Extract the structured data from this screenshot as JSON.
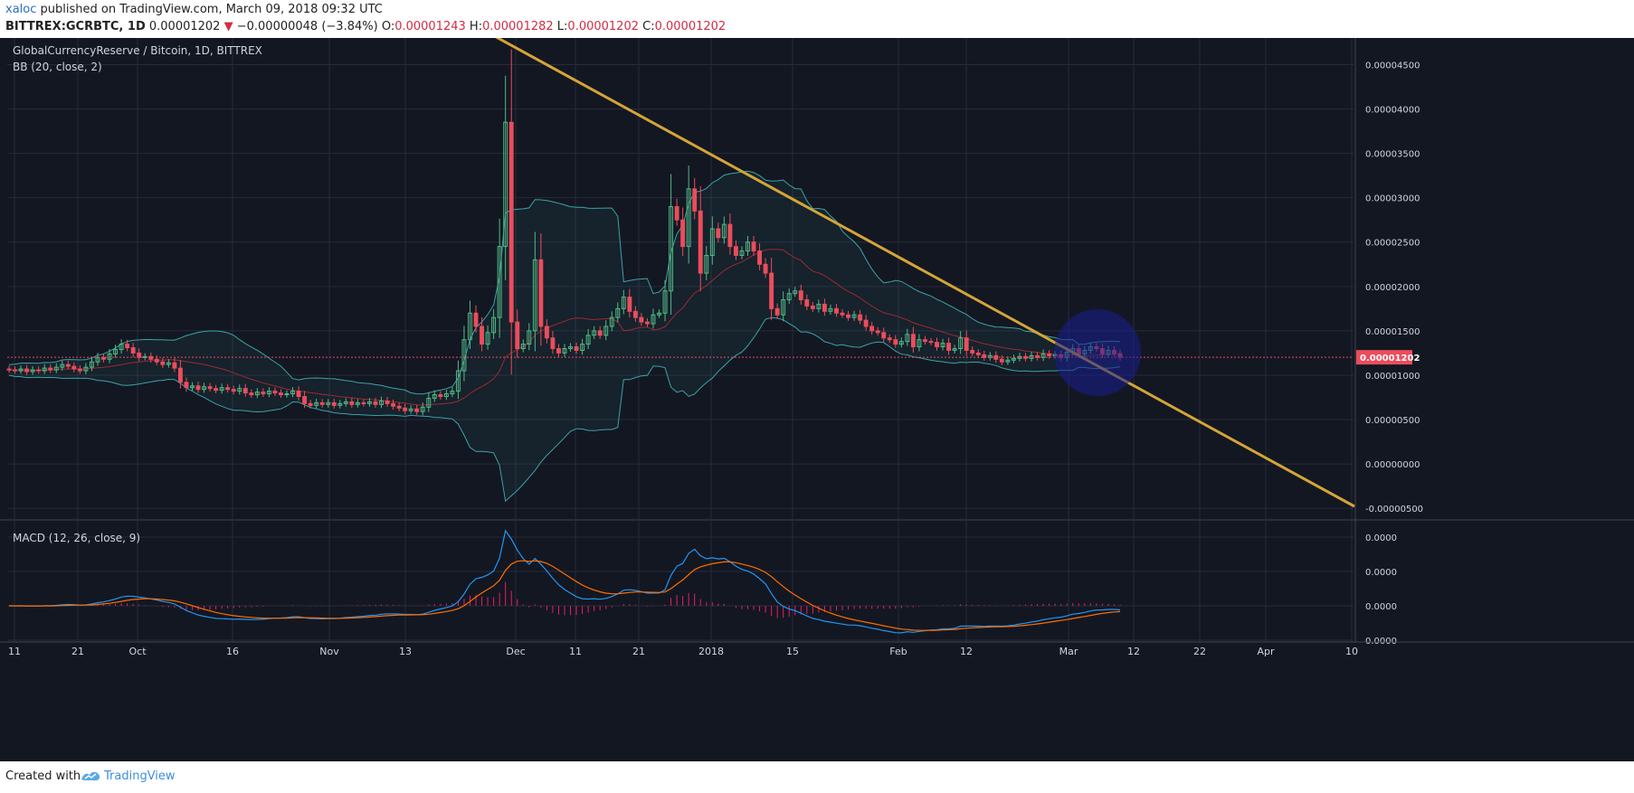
{
  "header": {
    "author": "xaloc",
    "published_text": "published on TradingView.com, March 09, 2018 09:32 UTC",
    "symbol": "BITTREX:GCRBTC, 1D",
    "last": "0.00001202",
    "arrow": "▼",
    "change": "−0.00000048 (−3.84%)",
    "o_label": "O:",
    "o_value": "0.00001243",
    "h_label": "H:",
    "h_value": "0.00001282",
    "l_label": "L:",
    "l_value": "0.00001202",
    "c_label": "C:",
    "c_value": "0.00001202"
  },
  "footer": {
    "created": "Created with",
    "brand": "TradingView"
  },
  "colors": {
    "background": "#131722",
    "grid": "#262b3a",
    "up": "#53b987",
    "down": "#eb4d5c",
    "band": "#3aa3a6",
    "trendline": "#d4a537",
    "macd": "#2196f3",
    "signal": "#ff6d00",
    "histogram": "#e91e63",
    "circle": "#1a1e8f"
  },
  "chart_data": {
    "type": "candlestick",
    "title": "GlobalCurrencyReserve / Bitcoin, 1D, BITTREX",
    "indicator_label": "BB (20, close, 2)",
    "macd_label": "MACD (12, 26, close, 9)",
    "y_ticks": [
      "0.00004500",
      "0.00004000",
      "0.00003500",
      "0.00003000",
      "0.00002500",
      "0.00002000",
      "0.00001500",
      "0.00001000",
      "0.00000500",
      "0.00000000",
      "-0.00000500"
    ],
    "y_range": [
      -6e-06,
      4.8e-05
    ],
    "last_price_label": "0.00001202",
    "macd_ticks": [
      "0.0000",
      "0.0000",
      "0.0000",
      "0.0000",
      "0.0000"
    ],
    "x_ticks": [
      "11",
      "21",
      "Oct",
      "16",
      "Nov",
      "13",
      "Dec",
      "11",
      "21",
      "2018",
      "15",
      "Feb",
      "12",
      "Mar",
      "12",
      "22",
      "Apr",
      "10"
    ],
    "closes": [
      10.6,
      10.5,
      10.7,
      10.4,
      10.6,
      10.5,
      10.8,
      10.6,
      10.9,
      11.2,
      11.0,
      10.7,
      10.5,
      10.9,
      11.5,
      12.0,
      11.8,
      12.4,
      12.9,
      13.5,
      13.1,
      12.5,
      12.0,
      12.1,
      11.8,
      11.5,
      11.2,
      11.4,
      10.8,
      9.2,
      8.6,
      8.8,
      8.4,
      8.7,
      8.5,
      8.3,
      8.6,
      8.4,
      8.2,
      8.5,
      8.0,
      7.8,
      8.1,
      7.9,
      8.2,
      8.0,
      7.8,
      7.9,
      8.2,
      7.6,
      6.8,
      6.6,
      6.9,
      6.7,
      6.9,
      6.6,
      6.8,
      7.0,
      6.7,
      6.9,
      6.8,
      7.0,
      6.7,
      7.1,
      6.8,
      6.5,
      6.3,
      6.0,
      6.2,
      5.9,
      6.4,
      7.4,
      7.8,
      7.6,
      7.9,
      8.2,
      10.5,
      14.0,
      17.0,
      15.5,
      13.5,
      14.8,
      16.5,
      24.5,
      38.5,
      16.0,
      13.0,
      13.5,
      15.0,
      23.0,
      15.5,
      14.2,
      13.0,
      12.5,
      13.0,
      13.2,
      12.8,
      13.5,
      14.5,
      15.0,
      14.5,
      15.5,
      16.5,
      17.5,
      18.8,
      17.2,
      16.5,
      16.0,
      15.8,
      16.8,
      17.0,
      19.5,
      29.0,
      27.5,
      24.5,
      31.0,
      28.5,
      21.5,
      23.5,
      26.5,
      25.5,
      27.0,
      24.5,
      23.5,
      24.0,
      25.0,
      24.0,
      22.5,
      21.5,
      17.5,
      16.8,
      18.5,
      19.2,
      19.5,
      18.5,
      17.8,
      17.5,
      18.0,
      17.2,
      17.5,
      17.0,
      16.8,
      16.5,
      16.8,
      16.2,
      15.5,
      15.0,
      14.8,
      14.2,
      14.0,
      13.5,
      13.8,
      14.6,
      13.2,
      14.0,
      13.8,
      13.7,
      13.2,
      13.6,
      12.8,
      13.0,
      14.2,
      12.8,
      12.5,
      12.3,
      12.0,
      12.2,
      11.8,
      11.5,
      11.7,
      11.9,
      12.1,
      11.9,
      12.2,
      12.0,
      12.4,
      12.2,
      12.3,
      12.0,
      12.6,
      13.0,
      12.4,
      12.8,
      13.2,
      13.0,
      12.4,
      12.8,
      12.43,
      12.02
    ]
  }
}
